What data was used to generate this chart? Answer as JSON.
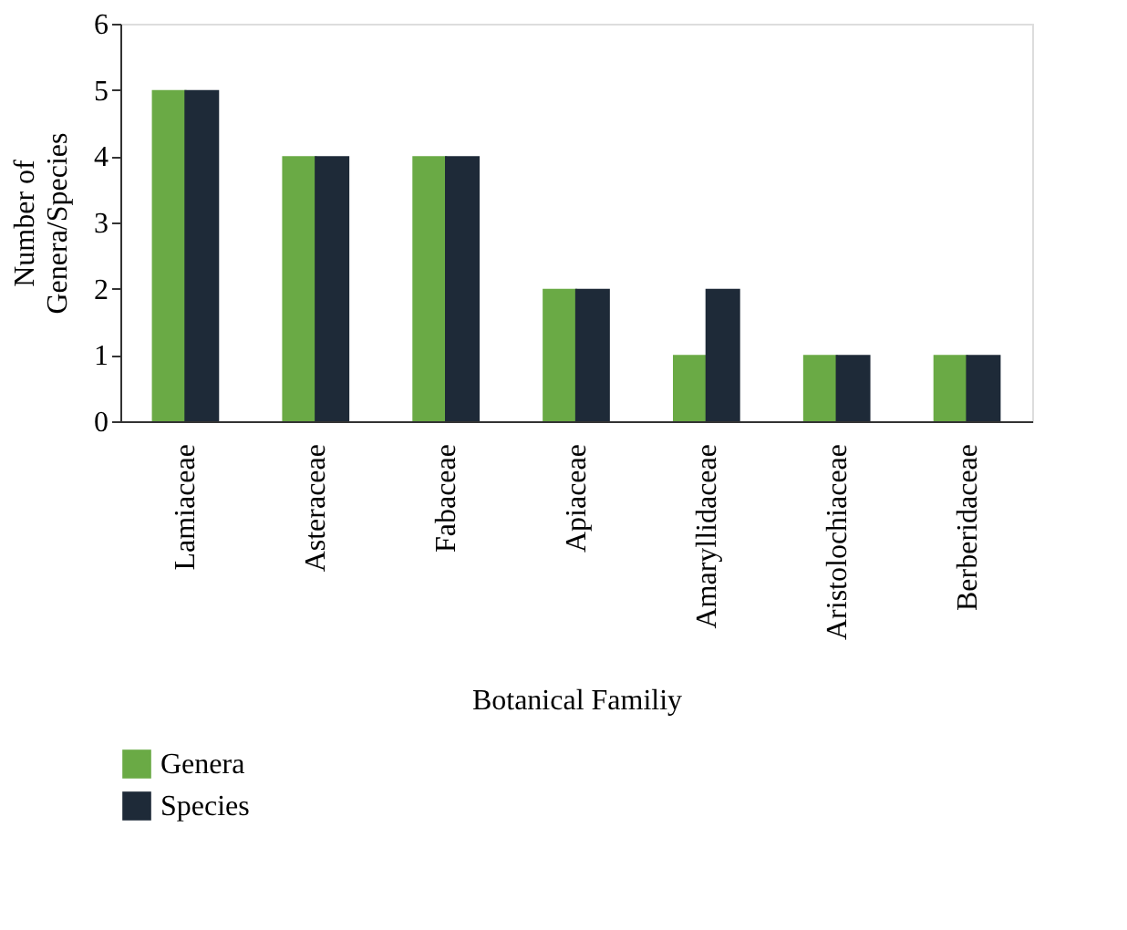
{
  "chart_data": {
    "type": "bar",
    "xlabel": "Botanical Familiy",
    "ylabel": "Number of Genera/Species",
    "categories": [
      "Lamiaceae",
      "Asteraceae",
      "Fabaceae",
      "Apiaceae",
      "Amaryllidaceae",
      "Aristolochiaceae",
      "Berberidaceae"
    ],
    "series": [
      {
        "name": "Genera",
        "color": "#6aaa45",
        "values": [
          5,
          4,
          4,
          2,
          1,
          1,
          1
        ]
      },
      {
        "name": "Species",
        "color": "#1e2a38",
        "values": [
          5,
          4,
          4,
          2,
          2,
          1,
          1
        ]
      }
    ],
    "ylim": [
      0,
      6
    ],
    "yticks": [
      0,
      1,
      2,
      3,
      4,
      5,
      6
    ],
    "grid": false,
    "legend": "bottom left"
  }
}
